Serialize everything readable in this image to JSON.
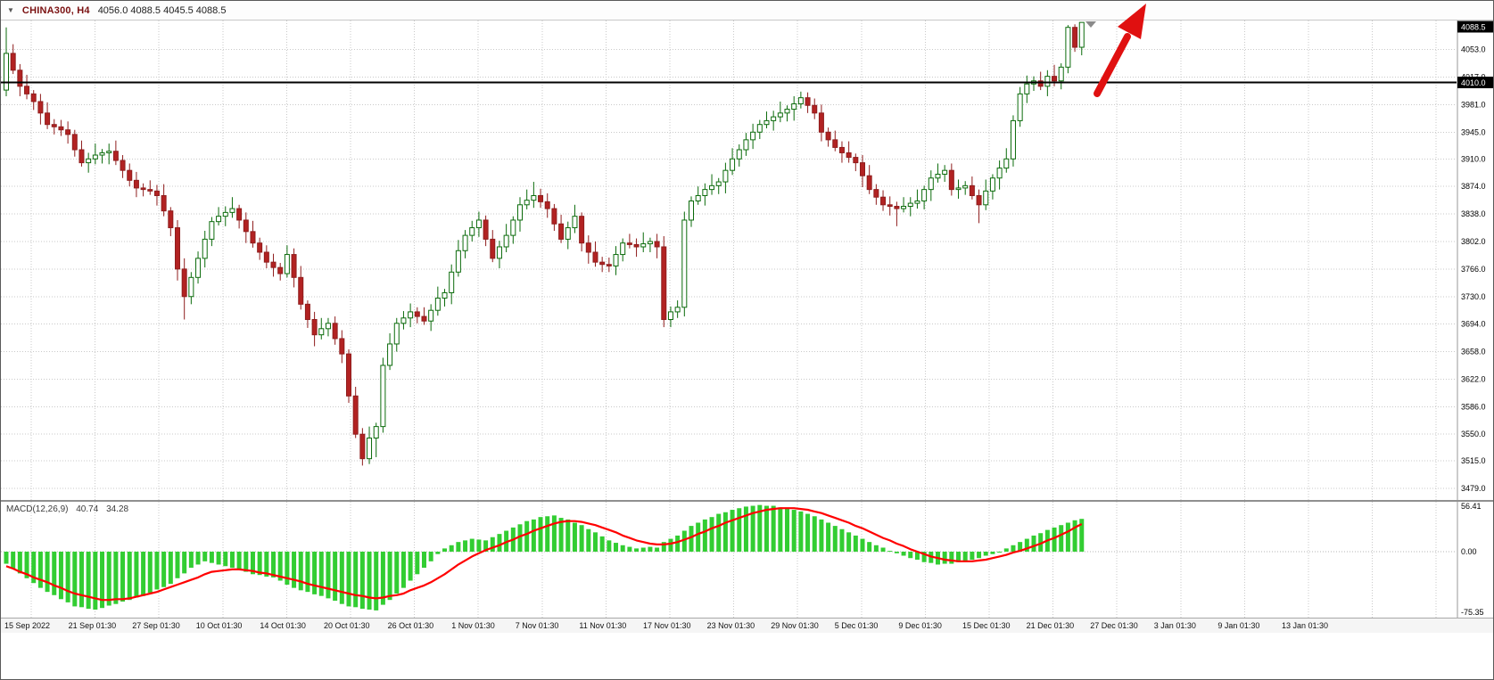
{
  "header": {
    "dropdown_icon": "▼",
    "symbol": "CHINA300, H4",
    "ohlc": "4056.0 4088.5 4045.5 4088.5"
  },
  "colors": {
    "grid": "#c9c9c9",
    "bull_fill": "#ffffff",
    "bull_stroke": "#0b6b0b",
    "bear_fill": "#b22222",
    "bear_stroke": "#8f1d1d",
    "macd_histogram": "#32cd32",
    "macd_signal": "#ff0000",
    "horizontal_line": "#000000",
    "arrow": "#e01010",
    "badge_bg": "#000000",
    "badge_text": "#ffffff"
  },
  "time_axis": {
    "labels": [
      "15 Sep 2022",
      "21 Sep 01:30",
      "27 Sep 01:30",
      "10 Oct 01:30",
      "14 Oct 01:30",
      "20 Oct 01:30",
      "26 Oct 01:30",
      "1 Nov 01:30",
      "7 Nov 01:30",
      "11 Nov 01:30",
      "17 Nov 01:30",
      "23 Nov 01:30",
      "29 Nov 01:30",
      "5 Dec 01:30",
      "9 Dec 01:30",
      "15 Dec 01:30",
      "21 Dec 01:30",
      "27 Dec 01:30",
      "3 Jan 01:30",
      "9 Jan 01:30",
      "13 Jan 01:30"
    ]
  },
  "chart_data": {
    "type": "candlestick",
    "symbol": "CHINA300",
    "timeframe": "H4",
    "current_bar": {
      "open": 4056.0,
      "high": 4088.5,
      "low": 4045.5,
      "close": 4088.5
    },
    "current_price": 4088.5,
    "horizontal_line_price": 4010.0,
    "price_axis_range": [
      3464,
      4091
    ],
    "price_ticks": [
      4053.0,
      4017.0,
      3981.0,
      3945.0,
      3910.0,
      3874.0,
      3838.0,
      3802.0,
      3766.0,
      3730.0,
      3694.0,
      3658.0,
      3622.0,
      3586.0,
      3550.0,
      3515.0,
      3479.0
    ],
    "candles": [
      [
        4000,
        4082,
        3992,
        4048
      ],
      [
        4048,
        4060,
        4021,
        4026
      ],
      [
        4026,
        4034,
        3992,
        4005
      ],
      [
        4005,
        4020,
        3988,
        3995
      ],
      [
        3995,
        4000,
        3974,
        3985
      ],
      [
        3985,
        3995,
        3955,
        3970
      ],
      [
        3970,
        3984,
        3949,
        3955
      ],
      [
        3955,
        3962,
        3942,
        3952
      ],
      [
        3952,
        3961,
        3940,
        3948
      ],
      [
        3948,
        3959,
        3930,
        3942
      ],
      [
        3942,
        3948,
        3913,
        3922
      ],
      [
        3922,
        3934,
        3900,
        3905
      ],
      [
        3905,
        3918,
        3892,
        3910
      ],
      [
        3910,
        3930,
        3903,
        3915
      ],
      [
        3915,
        3923,
        3904,
        3918
      ],
      [
        3918,
        3930,
        3903,
        3920
      ],
      [
        3920,
        3934,
        3902,
        3908
      ],
      [
        3908,
        3915,
        3885,
        3895
      ],
      [
        3895,
        3904,
        3874,
        3882
      ],
      [
        3882,
        3893,
        3860,
        3872
      ],
      [
        3872,
        3878,
        3861,
        3870
      ],
      [
        3870,
        3882,
        3863,
        3868
      ],
      [
        3868,
        3876,
        3849,
        3862
      ],
      [
        3862,
        3877,
        3835,
        3842
      ],
      [
        3842,
        3847,
        3809,
        3820
      ],
      [
        3820,
        3830,
        3751,
        3766
      ],
      [
        3766,
        3780,
        3700,
        3730
      ],
      [
        3730,
        3762,
        3720,
        3755
      ],
      [
        3755,
        3789,
        3747,
        3780
      ],
      [
        3780,
        3816,
        3768,
        3805
      ],
      [
        3805,
        3834,
        3796,
        3828
      ],
      [
        3828,
        3847,
        3823,
        3835
      ],
      [
        3835,
        3848,
        3822,
        3840
      ],
      [
        3840,
        3860,
        3833,
        3845
      ],
      [
        3845,
        3850,
        3819,
        3830
      ],
      [
        3830,
        3840,
        3800,
        3815
      ],
      [
        3815,
        3829,
        3794,
        3800
      ],
      [
        3800,
        3807,
        3778,
        3788
      ],
      [
        3788,
        3797,
        3767,
        3775
      ],
      [
        3775,
        3786,
        3756,
        3768
      ],
      [
        3768,
        3774,
        3751,
        3760
      ],
      [
        3760,
        3797,
        3755,
        3785
      ],
      [
        3785,
        3793,
        3742,
        3755
      ],
      [
        3755,
        3770,
        3713,
        3720
      ],
      [
        3720,
        3725,
        3689,
        3700
      ],
      [
        3700,
        3710,
        3665,
        3680
      ],
      [
        3680,
        3702,
        3674,
        3688
      ],
      [
        3688,
        3702,
        3678,
        3695
      ],
      [
        3695,
        3704,
        3667,
        3675
      ],
      [
        3675,
        3686,
        3643,
        3655
      ],
      [
        3655,
        3661,
        3591,
        3600
      ],
      [
        3600,
        3612,
        3545,
        3550
      ],
      [
        3550,
        3558,
        3509,
        3518
      ],
      [
        3518,
        3560,
        3511,
        3545
      ],
      [
        3545,
        3565,
        3520,
        3560
      ],
      [
        3560,
        3650,
        3552,
        3640
      ],
      [
        3640,
        3682,
        3634,
        3668
      ],
      [
        3668,
        3702,
        3658,
        3695
      ],
      [
        3695,
        3711,
        3687,
        3702
      ],
      [
        3702,
        3721,
        3690,
        3710
      ],
      [
        3710,
        3716,
        3695,
        3704
      ],
      [
        3704,
        3716,
        3693,
        3698
      ],
      [
        3698,
        3720,
        3685,
        3712
      ],
      [
        3712,
        3743,
        3705,
        3728
      ],
      [
        3728,
        3740,
        3717,
        3735
      ],
      [
        3735,
        3772,
        3720,
        3762
      ],
      [
        3762,
        3804,
        3756,
        3790
      ],
      [
        3790,
        3817,
        3780,
        3810
      ],
      [
        3810,
        3829,
        3802,
        3820
      ],
      [
        3820,
        3841,
        3808,
        3830
      ],
      [
        3830,
        3836,
        3796,
        3805
      ],
      [
        3805,
        3817,
        3775,
        3780
      ],
      [
        3780,
        3803,
        3767,
        3795
      ],
      [
        3795,
        3825,
        3788,
        3810
      ],
      [
        3810,
        3835,
        3799,
        3830
      ],
      [
        3830,
        3860,
        3815,
        3850
      ],
      [
        3850,
        3870,
        3844,
        3856
      ],
      [
        3856,
        3880,
        3846,
        3862
      ],
      [
        3862,
        3871,
        3846,
        3854
      ],
      [
        3854,
        3865,
        3833,
        3845
      ],
      [
        3845,
        3851,
        3816,
        3825
      ],
      [
        3825,
        3837,
        3800,
        3805
      ],
      [
        3805,
        3828,
        3792,
        3820
      ],
      [
        3820,
        3850,
        3813,
        3835
      ],
      [
        3835,
        3840,
        3789,
        3800
      ],
      [
        3800,
        3810,
        3773,
        3788
      ],
      [
        3788,
        3802,
        3769,
        3775
      ],
      [
        3775,
        3782,
        3762,
        3772
      ],
      [
        3772,
        3781,
        3762,
        3770
      ],
      [
        3770,
        3796,
        3758,
        3785
      ],
      [
        3785,
        3806,
        3776,
        3800
      ],
      [
        3800,
        3812,
        3793,
        3798
      ],
      [
        3798,
        3806,
        3782,
        3795
      ],
      [
        3795,
        3814,
        3788,
        3799
      ],
      [
        3799,
        3807,
        3788,
        3802
      ],
      [
        3802,
        3812,
        3780,
        3795
      ],
      [
        3795,
        3809,
        3690,
        3700
      ],
      [
        3700,
        3717,
        3690,
        3710
      ],
      [
        3710,
        3725,
        3702,
        3716
      ],
      [
        3716,
        3841,
        3704,
        3830
      ],
      [
        3830,
        3861,
        3821,
        3855
      ],
      [
        3855,
        3874,
        3850,
        3862
      ],
      [
        3862,
        3878,
        3849,
        3870
      ],
      [
        3870,
        3890,
        3863,
        3875
      ],
      [
        3875,
        3885,
        3864,
        3880
      ],
      [
        3880,
        3905,
        3865,
        3895
      ],
      [
        3895,
        3924,
        3889,
        3910
      ],
      [
        3910,
        3929,
        3900,
        3922
      ],
      [
        3922,
        3944,
        3914,
        3935
      ],
      [
        3935,
        3956,
        3923,
        3945
      ],
      [
        3945,
        3961,
        3936,
        3955
      ],
      [
        3955,
        3972,
        3950,
        3960
      ],
      [
        3960,
        3973,
        3947,
        3965
      ],
      [
        3965,
        3985,
        3958,
        3970
      ],
      [
        3970,
        3980,
        3959,
        3975
      ],
      [
        3975,
        3992,
        3960,
        3982
      ],
      [
        3982,
        3998,
        3976,
        3990
      ],
      [
        3990,
        3997,
        3970,
        3980
      ],
      [
        3980,
        3989,
        3962,
        3970
      ],
      [
        3970,
        3981,
        3933,
        3945
      ],
      [
        3945,
        3951,
        3926,
        3935
      ],
      [
        3935,
        3947,
        3920,
        3925
      ],
      [
        3925,
        3933,
        3905,
        3918
      ],
      [
        3918,
        3933,
        3905,
        3912
      ],
      [
        3912,
        3917,
        3894,
        3905
      ],
      [
        3905,
        3915,
        3873,
        3888
      ],
      [
        3888,
        3902,
        3864,
        3870
      ],
      [
        3870,
        3877,
        3850,
        3860
      ],
      [
        3860,
        3869,
        3842,
        3850
      ],
      [
        3850,
        3861,
        3836,
        3848
      ],
      [
        3848,
        3854,
        3822,
        3845
      ],
      [
        3845,
        3860,
        3840,
        3848
      ],
      [
        3848,
        3860,
        3835,
        3852
      ],
      [
        3852,
        3870,
        3845,
        3855
      ],
      [
        3855,
        3875,
        3844,
        3870
      ],
      [
        3870,
        3895,
        3855,
        3885
      ],
      [
        3885,
        3904,
        3879,
        3890
      ],
      [
        3890,
        3902,
        3880,
        3895
      ],
      [
        3895,
        3904,
        3862,
        3870
      ],
      [
        3870,
        3883,
        3858,
        3872
      ],
      [
        3872,
        3881,
        3863,
        3875
      ],
      [
        3875,
        3887,
        3857,
        3862
      ],
      [
        3862,
        3870,
        3826,
        3850
      ],
      [
        3850,
        3883,
        3843,
        3868
      ],
      [
        3868,
        3890,
        3857,
        3885
      ],
      [
        3885,
        3908,
        3870,
        3898
      ],
      [
        3898,
        3924,
        3892,
        3910
      ],
      [
        3910,
        3967,
        3900,
        3960
      ],
      [
        3960,
        4004,
        3952,
        3995
      ],
      [
        3995,
        4019,
        3983,
        4008
      ],
      [
        4008,
        4018,
        3999,
        4012
      ],
      [
        4012,
        4024,
        4000,
        4005
      ],
      [
        4005,
        4026,
        3992,
        4018
      ],
      [
        4018,
        4033,
        4005,
        4012
      ],
      [
        4012,
        4035,
        4001,
        4030
      ],
      [
        4030,
        4085,
        4022,
        4082
      ],
      [
        4082,
        4086,
        4050,
        4056
      ],
      [
        4056,
        4088.5,
        4045.5,
        4088.5
      ]
    ],
    "macd": {
      "label": "MACD(12,26,9)",
      "macd_value": 40.74,
      "signal_value": 34.28,
      "axis_labels": [
        "56.41",
        "0.00",
        "-75.35"
      ],
      "histogram": [
        -15,
        -21,
        -27,
        -33,
        -39,
        -45,
        -50,
        -54,
        -59,
        -63,
        -68,
        -69,
        -71,
        -72,
        -70,
        -67,
        -65,
        -62,
        -60,
        -57,
        -55,
        -51,
        -47,
        -44,
        -40,
        -33,
        -27,
        -20,
        -16,
        -12,
        -14,
        -16,
        -18,
        -20,
        -23,
        -25,
        -28,
        -29,
        -31,
        -32,
        -36,
        -41,
        -45,
        -48,
        -50,
        -53,
        -55,
        -58,
        -61,
        -65,
        -68,
        -69,
        -71,
        -72,
        -73,
        -66,
        -60,
        -52,
        -45,
        -36,
        -28,
        -20,
        -12,
        -3,
        4,
        8,
        12,
        14,
        16,
        15,
        14,
        18,
        22,
        26,
        30,
        34,
        38,
        40,
        43,
        44,
        45,
        42,
        40,
        36,
        33,
        28,
        24,
        19,
        14,
        11,
        8,
        6,
        4,
        5,
        6,
        5,
        12,
        16,
        20,
        26,
        32,
        36,
        40,
        43,
        47,
        49,
        52,
        54,
        56,
        57,
        58,
        57,
        57,
        55,
        54,
        52,
        50,
        47,
        44,
        40,
        36,
        32,
        28,
        24,
        20,
        16,
        12,
        8,
        5,
        1,
        -2,
        -5,
        -8,
        -10,
        -13,
        -14,
        -16,
        -15,
        -15,
        -13,
        -12,
        -10,
        -8,
        -5,
        -3,
        0,
        4,
        8,
        12,
        16,
        20,
        23,
        27,
        30,
        33,
        36,
        39,
        40.74
      ],
      "signal": [
        -18,
        -21,
        -25,
        -28,
        -32,
        -35,
        -38,
        -42,
        -45,
        -49,
        -52,
        -54,
        -56,
        -58,
        -60,
        -60,
        -59,
        -59,
        -58,
        -56,
        -54,
        -52,
        -50,
        -47,
        -44,
        -41,
        -38,
        -35,
        -32,
        -28,
        -25,
        -24,
        -23,
        -22,
        -22,
        -23,
        -24,
        -26,
        -27,
        -29,
        -31,
        -33,
        -35,
        -37,
        -40,
        -42,
        -44,
        -46,
        -48,
        -50,
        -52,
        -54,
        -55,
        -57,
        -58,
        -57,
        -55,
        -54,
        -52,
        -48,
        -45,
        -42,
        -38,
        -33,
        -28,
        -22,
        -16,
        -11,
        -6,
        -2,
        2,
        5,
        8,
        12,
        15,
        19,
        22,
        26,
        29,
        32,
        35,
        37,
        38,
        38,
        37,
        35,
        33,
        30,
        27,
        24,
        20,
        17,
        14,
        12,
        10,
        9,
        9,
        10,
        12,
        15,
        18,
        22,
        25,
        29,
        32,
        36,
        39,
        42,
        45,
        48,
        50,
        52,
        53,
        54,
        54,
        54,
        53,
        52,
        50,
        48,
        45,
        42,
        39,
        36,
        32,
        29,
        25,
        21,
        17,
        14,
        10,
        7,
        3,
        0,
        -3,
        -6,
        -8,
        -10,
        -11,
        -12,
        -12,
        -12,
        -11,
        -10,
        -8,
        -6,
        -4,
        -1,
        1,
        4,
        7,
        10,
        14,
        17,
        21,
        25,
        30,
        34.28
      ]
    },
    "annotations": [
      {
        "type": "arrow",
        "direction": "up-right",
        "color": "#e01010"
      }
    ]
  }
}
